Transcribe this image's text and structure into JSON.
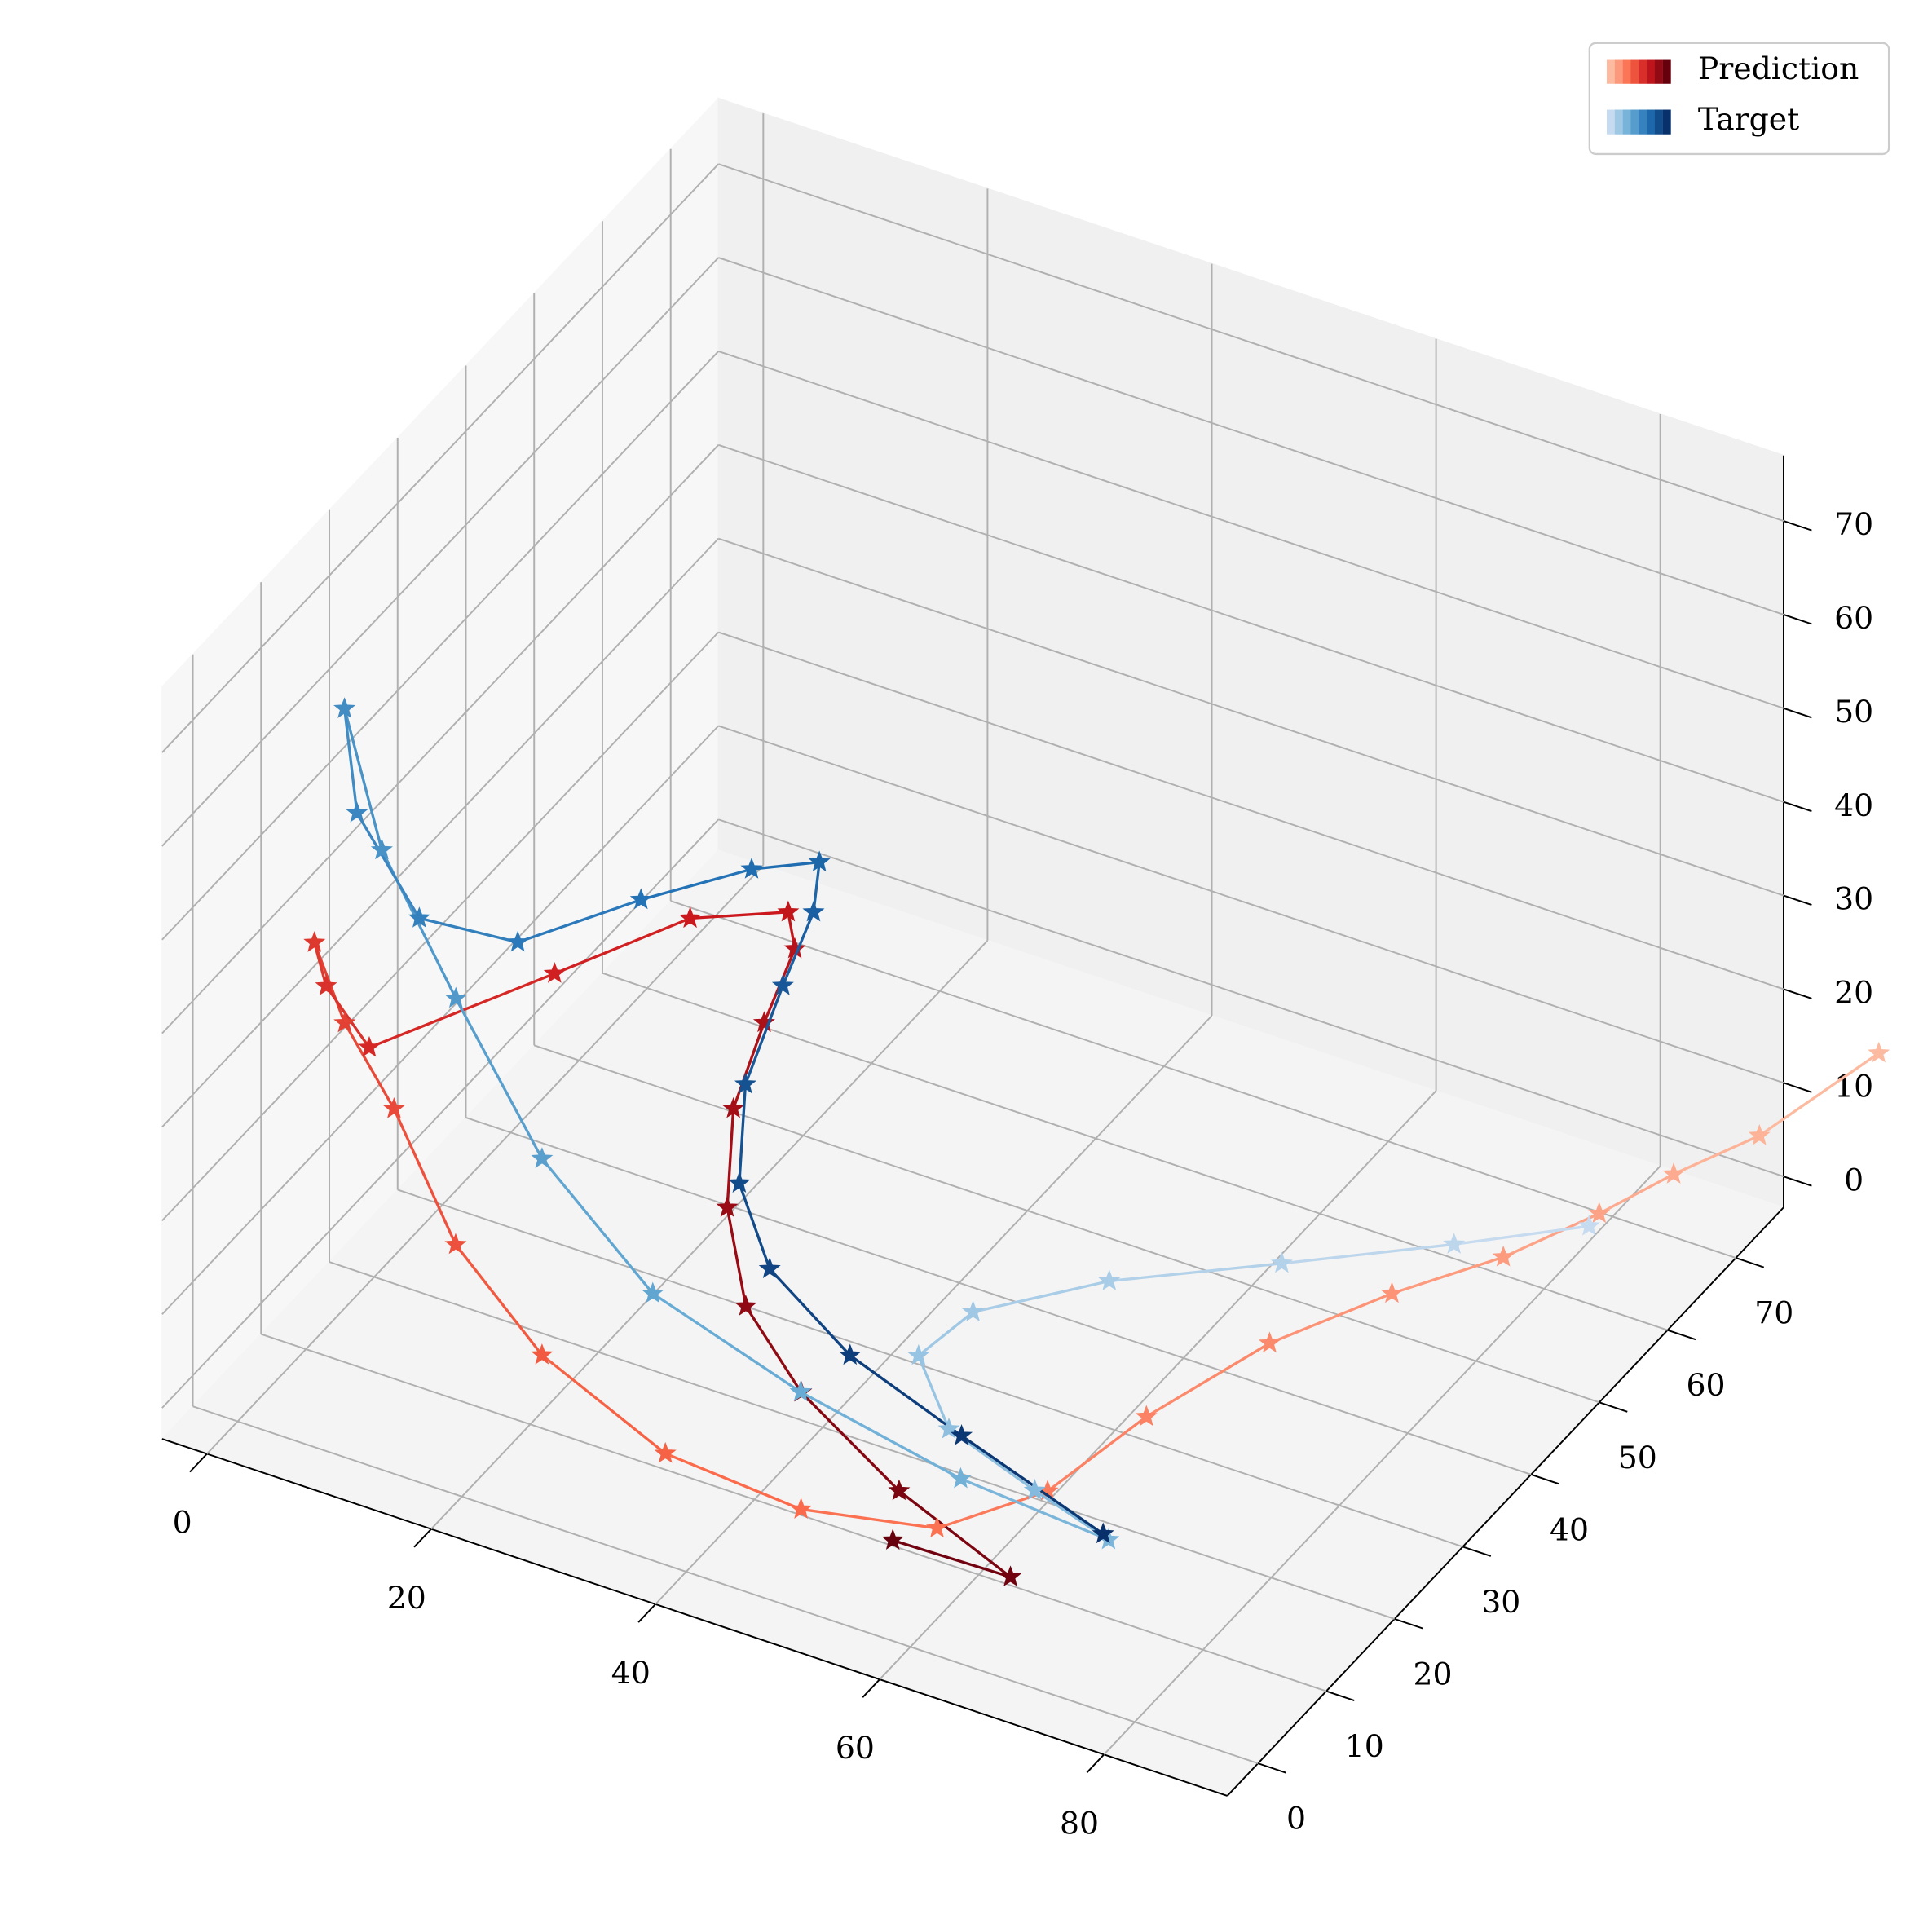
{
  "chart_data": {
    "type": "line3d",
    "xlim": [
      -4,
      91
    ],
    "ylim": [
      -4.5,
      77
    ],
    "zlim": [
      -3.3,
      77
    ],
    "xticks": [
      0,
      20,
      40,
      60,
      80
    ],
    "yticks": [
      0,
      10,
      20,
      30,
      40,
      50,
      60,
      70
    ],
    "zticks": [
      0,
      10,
      20,
      30,
      40,
      50,
      60,
      70
    ],
    "grid": true,
    "legend": "upper right",
    "series": [
      {
        "name": "Prediction",
        "marker": "*",
        "colors": [
          "#fcbba1",
          "#fb6a4a",
          "#cb181d",
          "#67000d"
        ],
        "x": [
          100.7,
          93.1,
          88.5,
          84.9,
          79.4,
          72.5,
          68.9,
          64.0,
          63.1,
          57.5,
          47.2,
          35.1,
          24.1,
          16.4,
          10.9,
          6.5,
          3.8,
          1.8,
          2.6,
          10.0,
          16.0,
          21.7,
          22.3,
          22.6,
          22.9,
          25.4,
          30.1,
          39.3,
          52.9,
          67.1,
          56.6
        ],
        "y": [
          75,
          70,
          65,
          60,
          55,
          50,
          38,
          28,
          15,
          8,
          5,
          5,
          5,
          5,
          5,
          5,
          5,
          10,
          15,
          30,
          40,
          45,
          45,
          40,
          35,
          30,
          25,
          18,
          10,
          3,
          3
        ],
        "z": [
          18.6,
          10.6,
          8.5,
          6.7,
          3.7,
          0.9,
          3.4,
          1.3,
          3.0,
          2.2,
          2.4,
          3.5,
          9.6,
          18.3,
          30.6,
          38.0,
          45.5,
          36.2,
          26.1,
          25.4,
          26.0,
          25.1,
          21.4,
          17.5,
          12.3,
          6.6,
          1.8,
          1.7,
          2.8,
          4.7,
          4.4
        ]
      },
      {
        "name": "Target",
        "marker": "*",
        "colors": [
          "#c6dbef",
          "#6baed6",
          "#2171b5",
          "#08306b"
        ],
        "x": [
          84.0,
          75.0,
          63.9,
          54.6,
          46.1,
          45.5,
          54.3,
          65.0,
          72.8,
          58.4,
          42.9,
          28.5,
          17.4,
          8.5,
          1.9,
          0.4,
          0.9,
          2.8,
          5.5,
          10.4,
          15.4,
          18.4,
          19.7,
          19.4,
          18.5,
          21.6,
          30.4,
          40.0,
          53.6,
          71.1
        ],
        "y": [
          60,
          55,
          48,
          38,
          32,
          25,
          15,
          10,
          8,
          10,
          12,
          14,
          16,
          18,
          18,
          15,
          16,
          22,
          32,
          42,
          50,
          55,
          52,
          48,
          44,
          38,
          28,
          24,
          18,
          10
        ],
        "z": [
          5.0,
          3.3,
          2.2,
          4.3,
          2.2,
          2.7,
          6.1,
          7.7,
          7.1,
          6.3,
          7.8,
          11.0,
          19.4,
          31.4,
          44.6,
          61.4,
          49.7,
          34.6,
          25.4,
          24.2,
          23.3,
          21.4,
          18.9,
          14.0,
          6.2,
          1.5,
          3.6,
          1.3,
          2.8,
          5.5
        ]
      }
    ]
  }
}
